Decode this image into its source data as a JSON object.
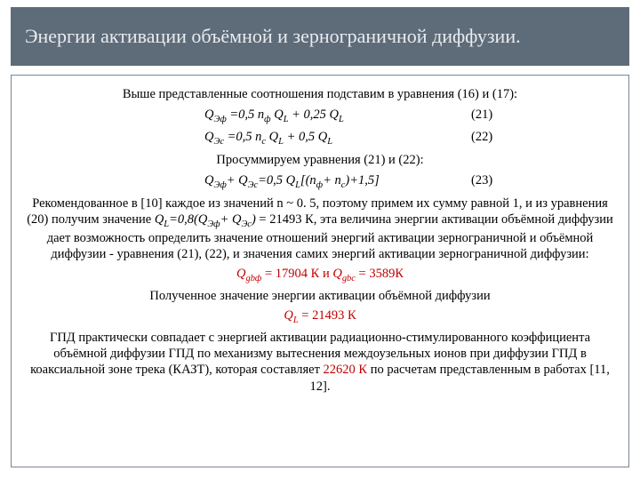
{
  "colors": {
    "title_bg": "#5e6b79",
    "title_text": "#e8ecef",
    "border": "#7b8693",
    "body_text": "#000000",
    "highlight": "#c00000",
    "background": "#ffffff"
  },
  "fonts": {
    "body_family": "Times New Roman",
    "body_size_pt": 11,
    "title_size_pt": 16
  },
  "title": "Энергии активации объёмной и зернограничной диффузии.",
  "intro": "Выше представленные соотношения подставим в уравнения (16) и (17):",
  "eq21": {
    "text": "QЭф =0,5 nф QL + 0,25 QL",
    "num": "(21)"
  },
  "eq22": {
    "text": "QЭс =0,5 nс QL + 0,5 QL",
    "num": "(22)"
  },
  "sum_line": "Просуммируем уравнения (21) и (22):",
  "eq23": {
    "text": "QЭф+ QЭс=0,5 QL[(nф+ nс)+1,5]",
    "num": "(23)"
  },
  "body1a": "Рекомендованное в [10] каждое из значений n ~ 0. 5, поэтому примем их сумму равной 1, и из уравнения (20) получим значение ",
  "body1b": "QL=0,8(QЭф+ QЭс)",
  "body1c": " = 21493 К, эта величина энергии активации объёмной диффузии дает возможность определить значение отношений энергий активации зернограничной и объёмной диффузии - уравнения (21), (22), и значения самих энергий активации зернограничной диффузии:",
  "qgb_parts": {
    "a": "Qgbф",
    " eq1": " = 17904 К и ",
    "b": "Qgbс",
    "eq2": " = 3589К"
  },
  "body2": "Полученное значение энергии активации объёмной диффузии",
  "ql_parts": {
    "lab": "QL",
    "val": " = 21493 К"
  },
  "body3a": "ГПД практически совпадает с энергией активации радиационно-стимулированного коэффициента объёмной диффузии ГПД по механизму вытеснения междоузельных ионов при диффузии ГПД в коаксиальной зоне трека (КАЗТ), которая составляет ",
  "body3_hl": "22620 К",
  "body3b": " по расчетам представленным в работах [11, 12]."
}
